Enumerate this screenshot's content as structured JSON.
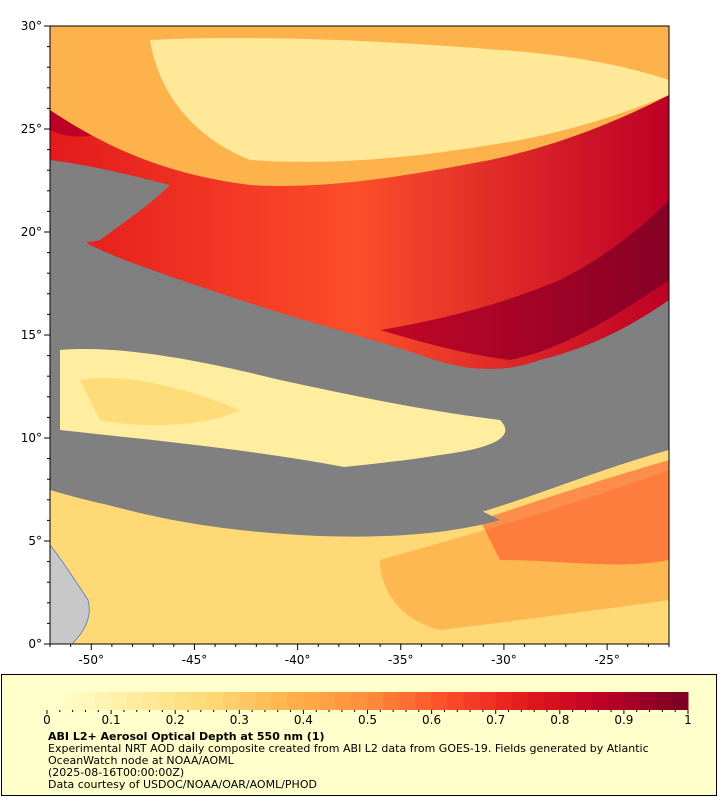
{
  "map": {
    "lat_range": [
      0,
      30
    ],
    "lon_range": [
      -52,
      -22
    ],
    "y_ticks": [
      {
        "value": 0,
        "label": "0°"
      },
      {
        "value": 5,
        "label": "5°"
      },
      {
        "value": 10,
        "label": "10°"
      },
      {
        "value": 15,
        "label": "15°"
      },
      {
        "value": 20,
        "label": "20°"
      },
      {
        "value": 25,
        "label": "25°"
      },
      {
        "value": 30,
        "label": "30°"
      }
    ],
    "x_ticks": [
      {
        "value": -50,
        "label": "-50°"
      },
      {
        "value": -45,
        "label": "-45°"
      },
      {
        "value": -40,
        "label": "-40°"
      },
      {
        "value": -35,
        "label": "-35°"
      },
      {
        "value": -30,
        "label": "-30°"
      },
      {
        "value": -25,
        "label": "-25°"
      }
    ],
    "colors": {
      "no_data": "#808080",
      "land": "#c8c8c8",
      "ramp": [
        "#ffffcc",
        "#ffeda0",
        "#fed976",
        "#feb24c",
        "#fd8d3c",
        "#fc4e2a",
        "#e31a1c",
        "#bd0026",
        "#800026"
      ]
    }
  },
  "colorbar": {
    "min": 0,
    "max": 1,
    "tick_labels": [
      "0",
      "0.1",
      "0.2",
      "0.3",
      "0.4",
      "0.5",
      "0.6",
      "0.7",
      "0.8",
      "0.9",
      "1"
    ]
  },
  "legend": {
    "title": "ABI L2+ Aerosol Optical Depth at 550 nm (1)",
    "line1": "Experimental NRT AOD daily composite created from ABI L2 data from GOES-19. Fields generated by Atlantic OceanWatch node at NOAA/AOML",
    "line2": "(2025-08-16T00:00:00Z)",
    "line3": "Data courtesy of USDOC/NOAA/OAR/AOML/PHOD"
  }
}
